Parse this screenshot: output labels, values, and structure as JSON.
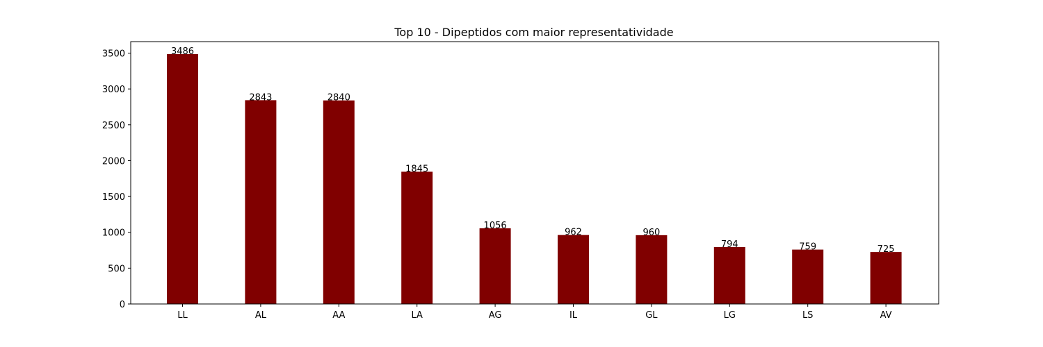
{
  "chart_data": {
    "type": "bar",
    "title": "Top 10 - Dipeptidos com maior representatividade",
    "xlabel": "",
    "ylabel": "",
    "categories": [
      "LL",
      "AL",
      "AA",
      "LA",
      "AG",
      "IL",
      "GL",
      "LG",
      "LS",
      "AV"
    ],
    "values": [
      3486,
      2843,
      2840,
      1845,
      1056,
      962,
      960,
      794,
      759,
      725
    ],
    "data_labels": [
      "3486",
      "2843",
      "2840",
      "1845",
      "1056",
      "962",
      "960",
      "794",
      "759",
      "725"
    ],
    "yticks": [
      0,
      500,
      1000,
      1500,
      2000,
      2500,
      3000,
      3500
    ],
    "ytick_labels": [
      "0",
      "500",
      "1000",
      "1500",
      "2000",
      "2500",
      "3000",
      "3500"
    ],
    "ylim": [
      0,
      3660
    ],
    "bar_color": "#800000",
    "grid": false,
    "legend": "none"
  }
}
